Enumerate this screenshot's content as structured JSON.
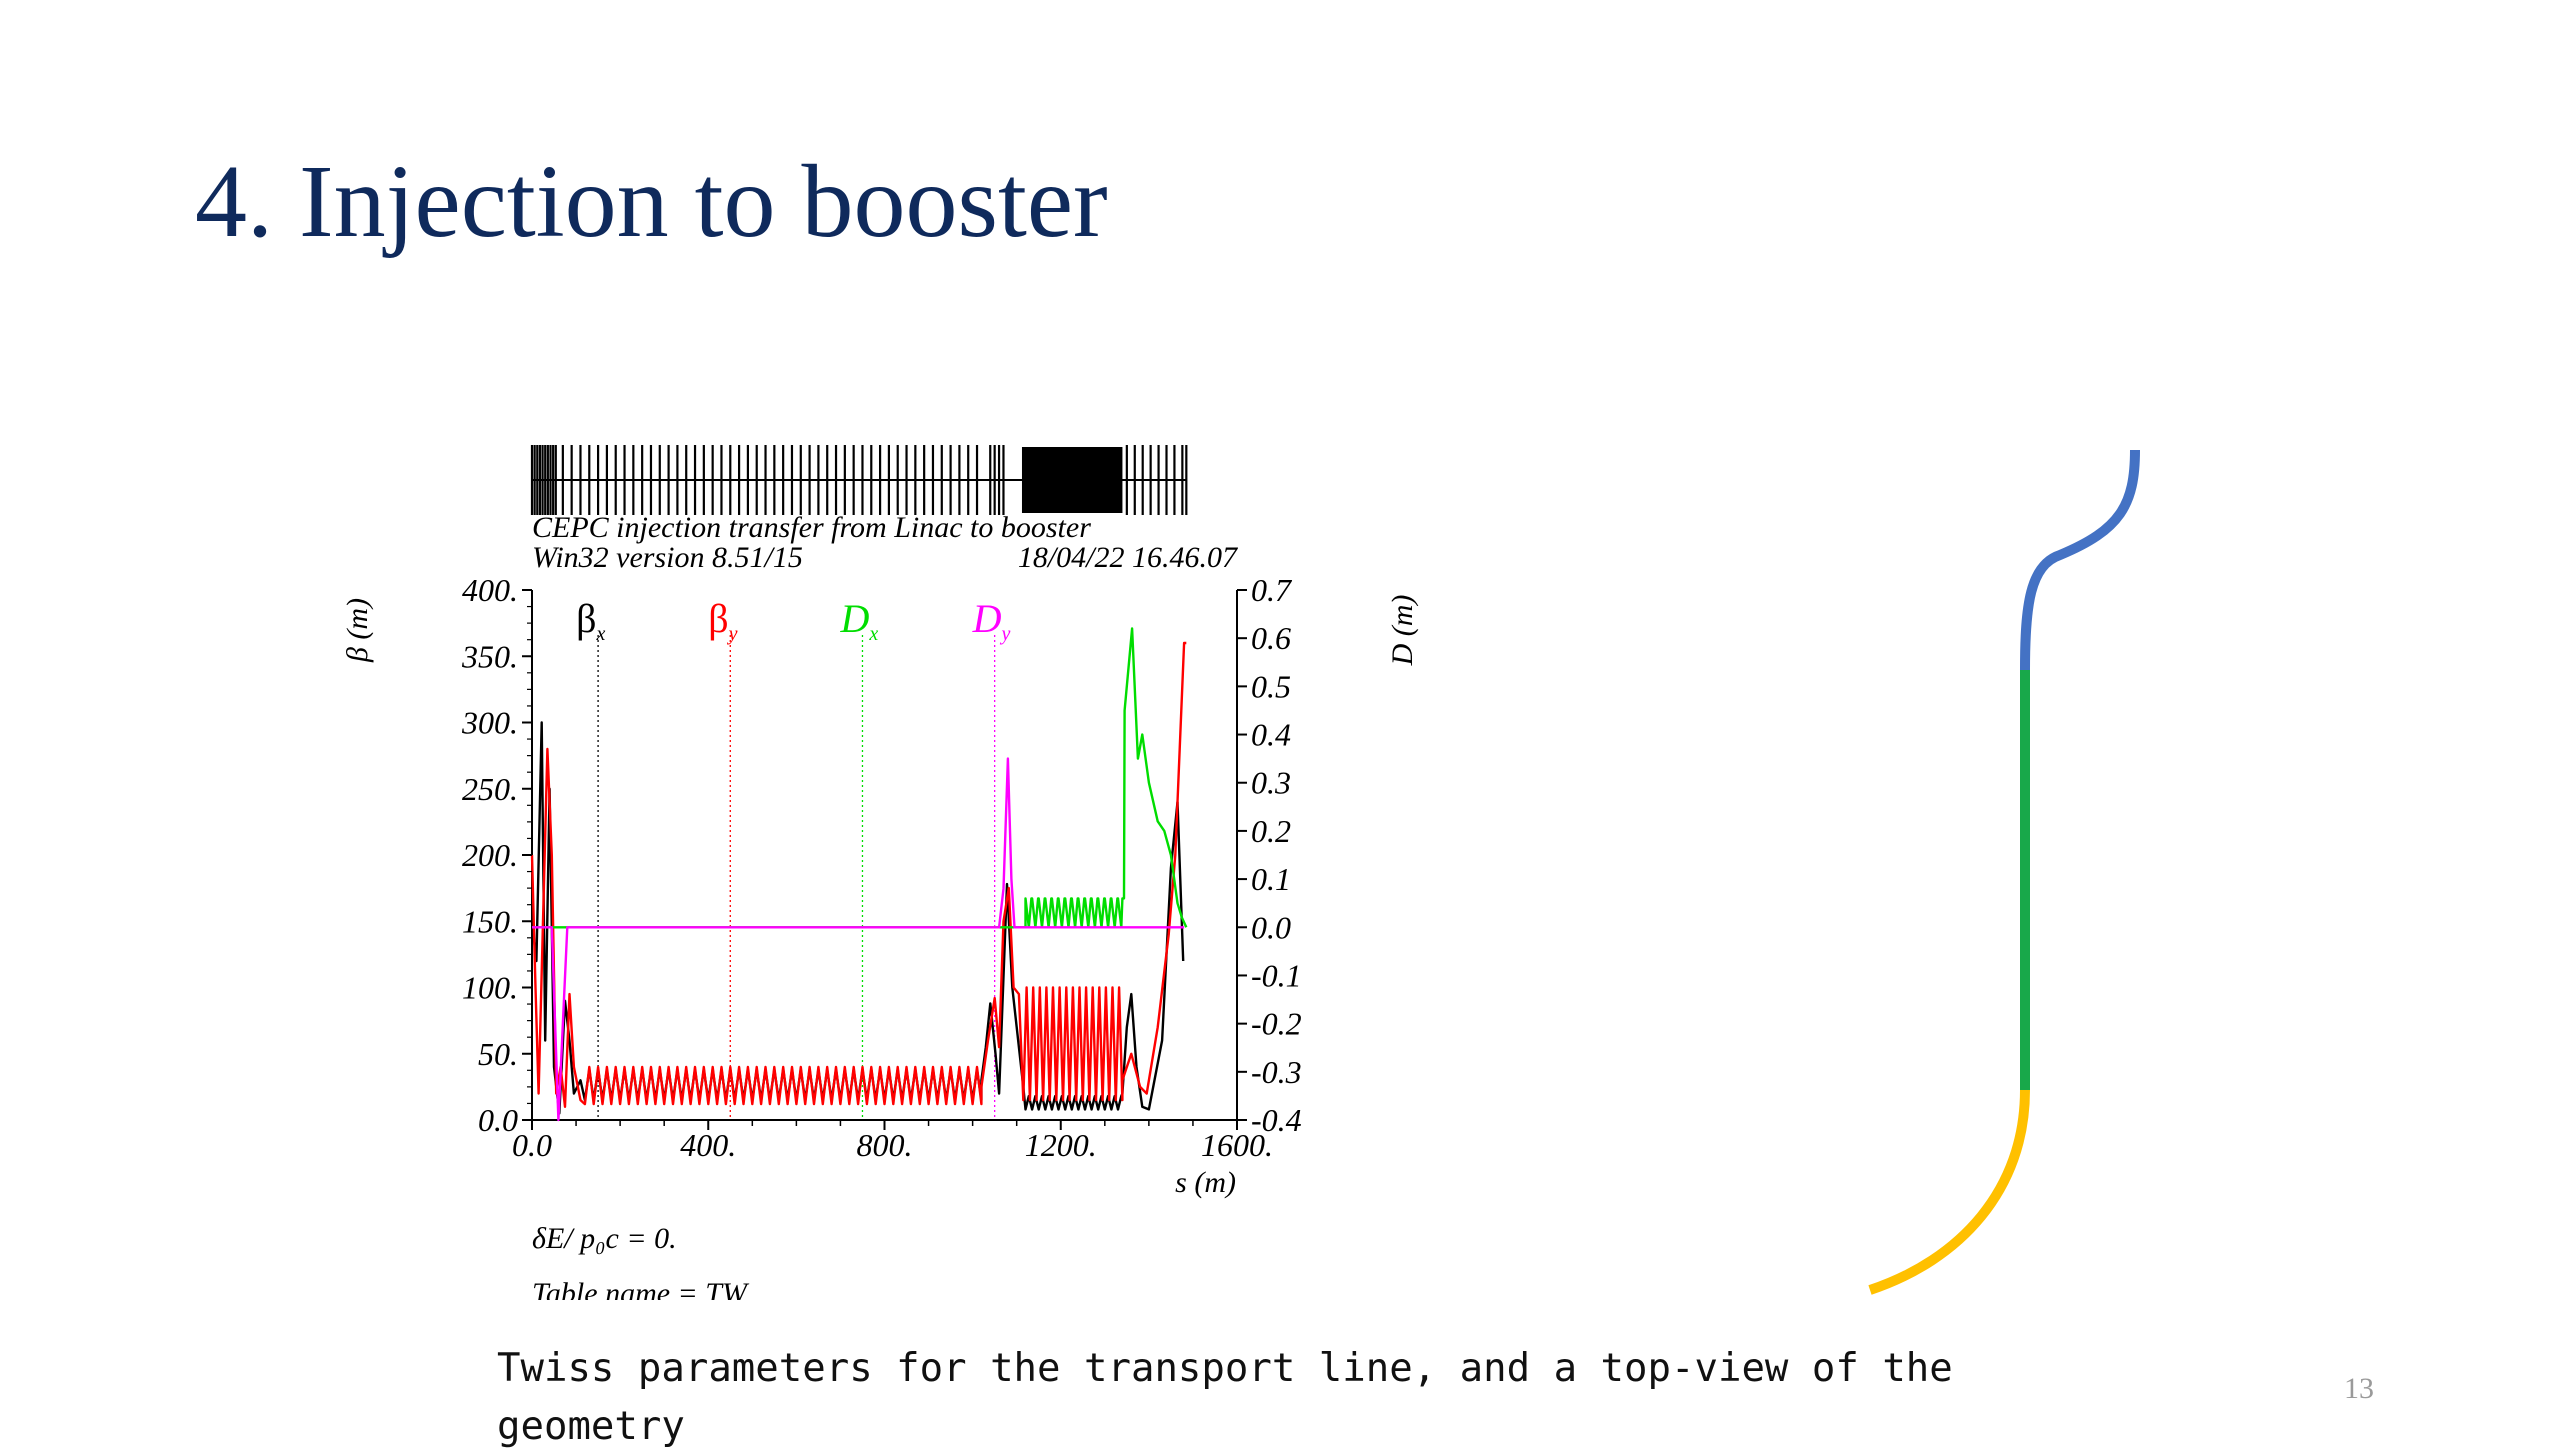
{
  "slide": {
    "title": "4. Injection to booster",
    "caption": "Twiss parameters for the transport line,  and a top-view of the geometry",
    "page_number": "13"
  },
  "chart_data": {
    "type": "line",
    "header_line1": "CEPC injection transfer from Linac to booster",
    "header_line2_left": "Win32 version 8.51/15",
    "header_line2_right": "18/04/22  16.46.07",
    "xlabel": "s (m)",
    "ylabel_left": "β (m)",
    "ylabel_right": "D (m)",
    "xlim": [
      0,
      1600
    ],
    "ylim_left": [
      0,
      400
    ],
    "ylim_right": [
      -0.4,
      0.7
    ],
    "x_ticks": [
      "0.0",
      "400.",
      "800.",
      "1200.",
      "1600."
    ],
    "y_ticks_left": [
      "0.0",
      "50.",
      "100.",
      "150.",
      "200.",
      "250.",
      "300.",
      "350.",
      "400."
    ],
    "y_ticks_right": [
      "-0.4",
      "-0.3",
      "-0.2",
      "-0.1",
      "0.0",
      "0.1",
      "0.2",
      "0.3",
      "0.4",
      "0.5",
      "0.6",
      "0.7"
    ],
    "legend": [
      {
        "main": "β",
        "sub": "x",
        "color": "#000000",
        "s": 150
      },
      {
        "main": "β",
        "sub": "y",
        "color": "#ff0000",
        "s": 450
      },
      {
        "main": "D",
        "sub": "x",
        "color": "#00dd00",
        "s": 750
      },
      {
        "main": "D",
        "sub": "y",
        "color": "#ff00ff",
        "s": 1050
      }
    ],
    "footer_line1": "δE/ p₀c  =  0.",
    "footer_line2": "Table name = TW",
    "series": [
      {
        "name": "βx",
        "axis": "left",
        "color": "#000000",
        "points": [
          [
            0,
            150
          ],
          [
            10,
            120
          ],
          [
            22,
            300
          ],
          [
            30,
            60
          ],
          [
            40,
            250
          ],
          [
            50,
            40
          ],
          [
            62,
            5
          ],
          [
            75,
            90
          ],
          [
            85,
            60
          ],
          [
            95,
            20
          ],
          [
            110,
            30
          ],
          {
            "osc": {
              "s0": 120,
              "s1": 1020,
              "period": 20,
              "lo": 15,
              "hi": 38
            }
          },
          [
            1020,
            30
          ],
          [
            1030,
            55
          ],
          [
            1040,
            88
          ],
          [
            1052,
            50
          ],
          [
            1060,
            20
          ],
          [
            1078,
            178
          ],
          [
            1090,
            100
          ],
          [
            1100,
            70
          ],
          [
            1115,
            25
          ],
          {
            "osc": {
              "s0": 1120,
              "s1": 1340,
              "period": 15,
              "lo": 8,
              "hi": 18
            }
          },
          [
            1340,
            20
          ],
          [
            1350,
            70
          ],
          [
            1360,
            95
          ],
          [
            1372,
            40
          ],
          [
            1385,
            10
          ],
          [
            1400,
            8
          ],
          [
            1430,
            60
          ],
          [
            1450,
            190
          ],
          [
            1465,
            240
          ],
          [
            1478,
            120
          ]
        ]
      },
      {
        "name": "βy",
        "axis": "left",
        "color": "#ff0000",
        "points": [
          [
            0,
            200
          ],
          [
            8,
            100
          ],
          [
            15,
            20
          ],
          [
            25,
            150
          ],
          [
            35,
            280
          ],
          [
            45,
            200
          ],
          [
            55,
            20
          ],
          [
            65,
            40
          ],
          [
            75,
            10
          ],
          [
            85,
            95
          ],
          [
            95,
            40
          ],
          [
            110,
            15
          ],
          {
            "osc": {
              "s0": 120,
              "s1": 1020,
              "period": 20,
              "lo": 12,
              "hi": 40
            }
          },
          [
            1020,
            25
          ],
          [
            1035,
            60
          ],
          [
            1050,
            92
          ],
          [
            1060,
            55
          ],
          [
            1070,
            150
          ],
          [
            1082,
            175
          ],
          [
            1093,
            100
          ],
          [
            1105,
            95
          ],
          {
            "osc": {
              "s0": 1115,
              "s1": 1340,
              "period": 15,
              "lo": 15,
              "hi": 100
            }
          },
          [
            1340,
            30
          ],
          [
            1360,
            50
          ],
          [
            1380,
            25
          ],
          [
            1395,
            20
          ],
          [
            1420,
            70
          ],
          [
            1445,
            140
          ],
          [
            1460,
            200
          ],
          [
            1470,
            280
          ],
          [
            1480,
            360
          ],
          [
            1485,
            360
          ]
        ]
      },
      {
        "name": "Dx",
        "axis": "right",
        "color": "#00dd00",
        "points": [
          [
            0,
            0
          ],
          [
            1120,
            0
          ],
          {
            "teeth": {
              "s0": 1120,
              "s1": 1340,
              "period": 15,
              "lo": 0.0,
              "hi": 0.06
            }
          },
          [
            1340,
            0.06
          ],
          [
            1345,
            0.45
          ],
          [
            1362,
            0.62
          ],
          [
            1375,
            0.35
          ],
          [
            1385,
            0.4
          ],
          [
            1400,
            0.3
          ],
          [
            1420,
            0.22
          ],
          [
            1435,
            0.2
          ],
          [
            1450,
            0.15
          ],
          [
            1465,
            0.05
          ],
          [
            1475,
            0.02
          ],
          [
            1485,
            0
          ]
        ]
      },
      {
        "name": "Dy",
        "axis": "right",
        "color": "#ff00ff",
        "points": [
          [
            0,
            0
          ],
          [
            45,
            0
          ],
          [
            60,
            -0.4
          ],
          [
            80,
            0
          ],
          [
            1060,
            0
          ],
          [
            1070,
            0.08
          ],
          [
            1080,
            0.35
          ],
          [
            1088,
            0.1
          ],
          [
            1095,
            0
          ],
          [
            1480,
            0
          ]
        ]
      }
    ]
  },
  "geometry": {
    "segments": [
      {
        "name": "upper-arc",
        "color": "#4472c4"
      },
      {
        "name": "straight",
        "color": "#18a84a"
      },
      {
        "name": "lower-arc",
        "color": "#ffc000"
      }
    ]
  }
}
